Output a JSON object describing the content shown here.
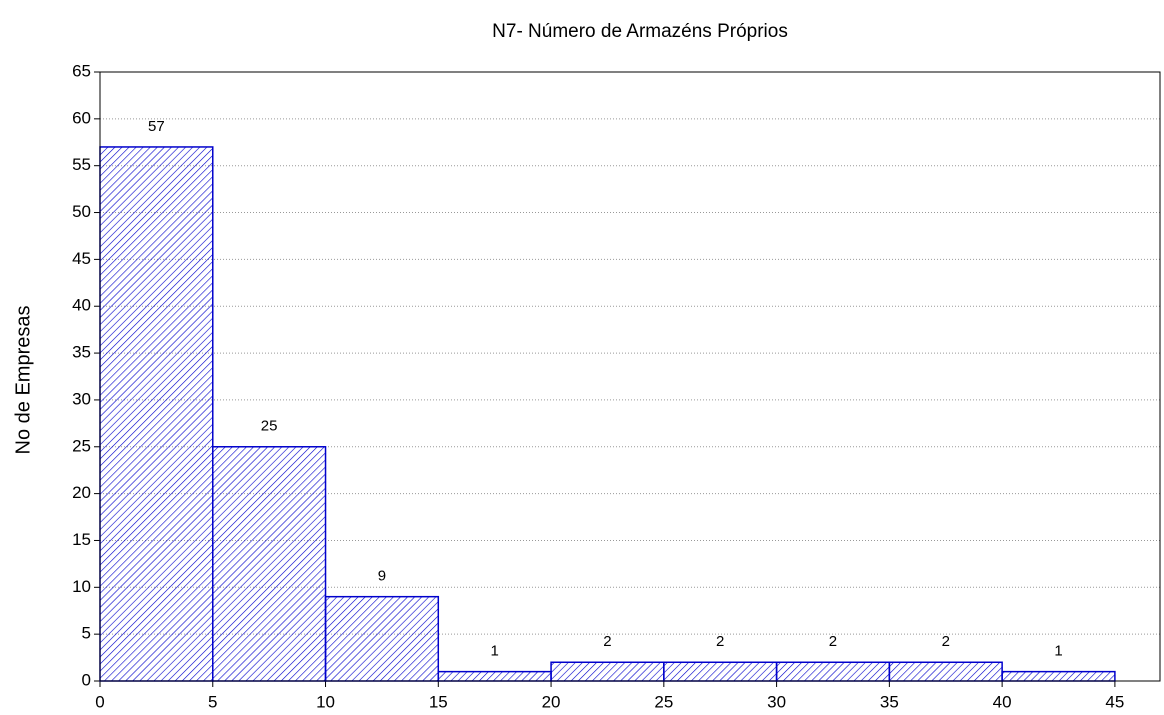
{
  "chart_data": {
    "type": "histogram",
    "title": "N7- Número de Armazéns Próprios",
    "y_label": "No de Empresas",
    "bins": [
      0,
      5,
      10,
      15,
      20,
      25,
      30,
      35,
      40,
      45
    ],
    "values": [
      57,
      25,
      9,
      1,
      2,
      2,
      2,
      2,
      1
    ],
    "color": "#0000cc",
    "xlim": [
      0,
      47
    ],
    "xticks": [
      0,
      5,
      10,
      15,
      20,
      25,
      30,
      35,
      40,
      45
    ],
    "ylim": [
      0,
      65
    ],
    "yticks": [
      0,
      5,
      10,
      15,
      20,
      25,
      30,
      35,
      40,
      45,
      50,
      55,
      60,
      65
    ],
    "grid": true
  }
}
